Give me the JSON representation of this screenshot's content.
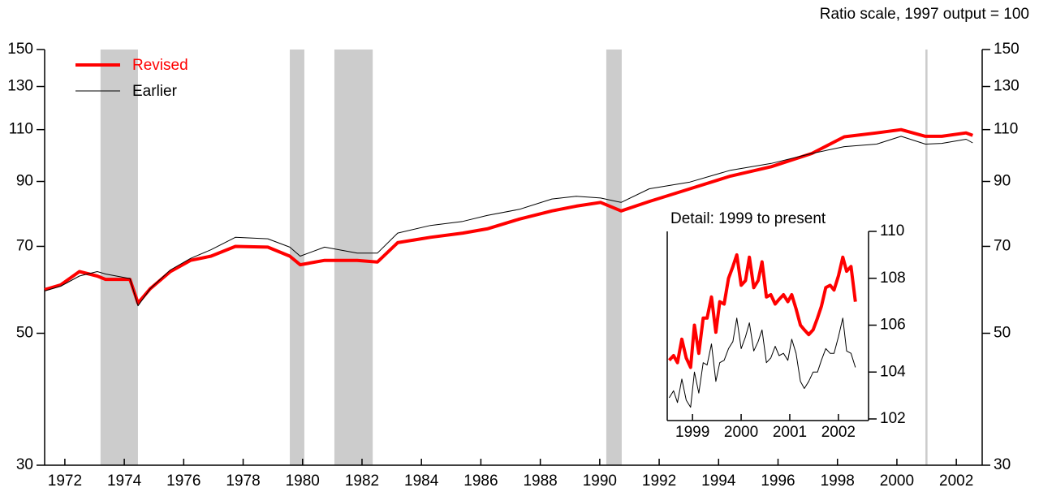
{
  "chart_data": [
    {
      "type": "line",
      "subtitle": "Ratio scale, 1997 output = 100",
      "log_scale": true,
      "legend": "upper left",
      "xlim": [
        1971.32,
        2002.87
      ],
      "xticks": [
        1972,
        1974,
        1976,
        1978,
        1980,
        1982,
        1984,
        1986,
        1988,
        1990,
        1992,
        1994,
        1996,
        1998,
        2000,
        2002
      ],
      "ylim": [
        30,
        150
      ],
      "yticks": [
        30,
        50,
        70,
        90,
        110,
        130,
        150
      ],
      "y2lim": [
        30,
        150
      ],
      "y2ticks": [
        30,
        50,
        70,
        90,
        110,
        130,
        150
      ],
      "shaded_periods": [
        [
          1973.2,
          1974.46
        ],
        [
          1979.57,
          1980.06
        ],
        [
          1981.07,
          1982.36
        ],
        [
          1990.22,
          1990.74
        ],
        [
          2000.96,
          2001.03
        ]
      ],
      "shade_color": "#cccccc",
      "x": [
        1971.32,
        1971.86,
        1972.49,
        1973.09,
        1973.37,
        1974.19,
        1974.46,
        1974.87,
        1975.55,
        1976.23,
        1976.92,
        1977.74,
        1978.83,
        1979.57,
        1979.92,
        1980.74,
        1981.84,
        1982.52,
        1983.2,
        1984.3,
        1985.39,
        1986.21,
        1987.3,
        1988.39,
        1989.21,
        1990.03,
        1990.72,
        1991.67,
        1993.04,
        1994.4,
        1995.77,
        1997.14,
        1998.23,
        1999.32,
        2000.14,
        2000.96,
        2001.51,
        2002.33,
        2002.55
      ],
      "series": [
        {
          "name": "Revised",
          "color": "#ff0000",
          "line_width": 4,
          "values": [
            59.2,
            60.3,
            63.5,
            62.4,
            61.6,
            61.6,
            56.2,
            59.4,
            63.5,
            66.3,
            67.4,
            70.0,
            69.8,
            67.4,
            65.2,
            66.3,
            66.3,
            65.9,
            71.0,
            72.5,
            73.7,
            74.9,
            77.8,
            80.3,
            81.8,
            83.0,
            80.3,
            83.3,
            87.5,
            91.9,
            95.3,
            100.3,
            107.0,
            108.6,
            110.0,
            107.2,
            107.2,
            108.6,
            107.6
          ]
        },
        {
          "name": "Earlier",
          "color": "#000000",
          "line_width": 1,
          "values": [
            58.9,
            60.0,
            62.4,
            63.5,
            62.9,
            61.8,
            55.6,
            59.4,
            63.9,
            66.8,
            69.1,
            72.5,
            72.1,
            69.8,
            67.4,
            69.8,
            68.2,
            68.2,
            73.7,
            75.9,
            77.1,
            78.9,
            80.8,
            84.1,
            85.0,
            84.4,
            83.0,
            87.5,
            89.8,
            94.0,
            96.5,
            100.3,
            103.0,
            104.0,
            107.2,
            104.0,
            104.3,
            106.0,
            104.5
          ]
        }
      ]
    },
    {
      "type": "line",
      "title": "Detail: 1999 to present",
      "y_axis_side": "right",
      "xlim": [
        1998.48,
        2002.62
      ],
      "xticks": [
        1999,
        2000,
        2001,
        2002
      ],
      "ylim": [
        102,
        110
      ],
      "yticks": [
        102,
        104,
        106,
        108,
        110
      ],
      "x": [
        1998.52,
        1998.61,
        1998.69,
        1998.78,
        1998.87,
        1998.96,
        1999.04,
        1999.13,
        1999.22,
        1999.3,
        1999.39,
        1999.48,
        1999.56,
        1999.65,
        1999.74,
        1999.83,
        1999.91,
        2000.0,
        2000.09,
        2000.17,
        2000.26,
        2000.35,
        2000.43,
        2000.52,
        2000.61,
        2000.7,
        2000.78,
        2000.87,
        2000.96,
        2001.04,
        2001.13,
        2001.22,
        2001.3,
        2001.39,
        2001.48,
        2001.57,
        2001.65,
        2001.74,
        2001.83,
        2001.91,
        2002.0,
        2002.09,
        2002.17,
        2002.26,
        2002.35
      ],
      "series": [
        {
          "name": "Revised",
          "color": "#ff0000",
          "line_width": 4,
          "values": [
            104.5,
            104.7,
            104.4,
            105.4,
            104.6,
            104.2,
            106.0,
            104.8,
            106.3,
            106.3,
            107.2,
            105.7,
            107.0,
            106.9,
            108.0,
            108.5,
            109.0,
            107.7,
            107.9,
            108.9,
            107.6,
            107.9,
            108.7,
            107.2,
            107.3,
            106.9,
            107.1,
            107.3,
            107.0,
            107.3,
            106.7,
            106.0,
            105.8,
            105.6,
            105.8,
            106.3,
            106.8,
            107.6,
            107.7,
            107.5,
            108.1,
            108.9,
            108.3,
            108.5,
            107.0
          ]
        },
        {
          "name": "Earlier",
          "color": "#000000",
          "line_width": 1,
          "values": [
            102.9,
            103.2,
            102.7,
            103.7,
            102.8,
            102.5,
            104.0,
            103.1,
            104.4,
            104.3,
            105.2,
            103.6,
            104.4,
            104.5,
            105.0,
            105.3,
            106.3,
            105.0,
            105.5,
            106.1,
            104.9,
            105.3,
            105.8,
            104.4,
            104.6,
            105.1,
            104.7,
            104.8,
            104.5,
            105.4,
            104.8,
            103.6,
            103.3,
            103.6,
            104.0,
            104.0,
            104.5,
            105.0,
            104.8,
            104.8,
            105.5,
            106.3,
            104.9,
            104.8,
            104.2
          ]
        }
      ]
    }
  ]
}
